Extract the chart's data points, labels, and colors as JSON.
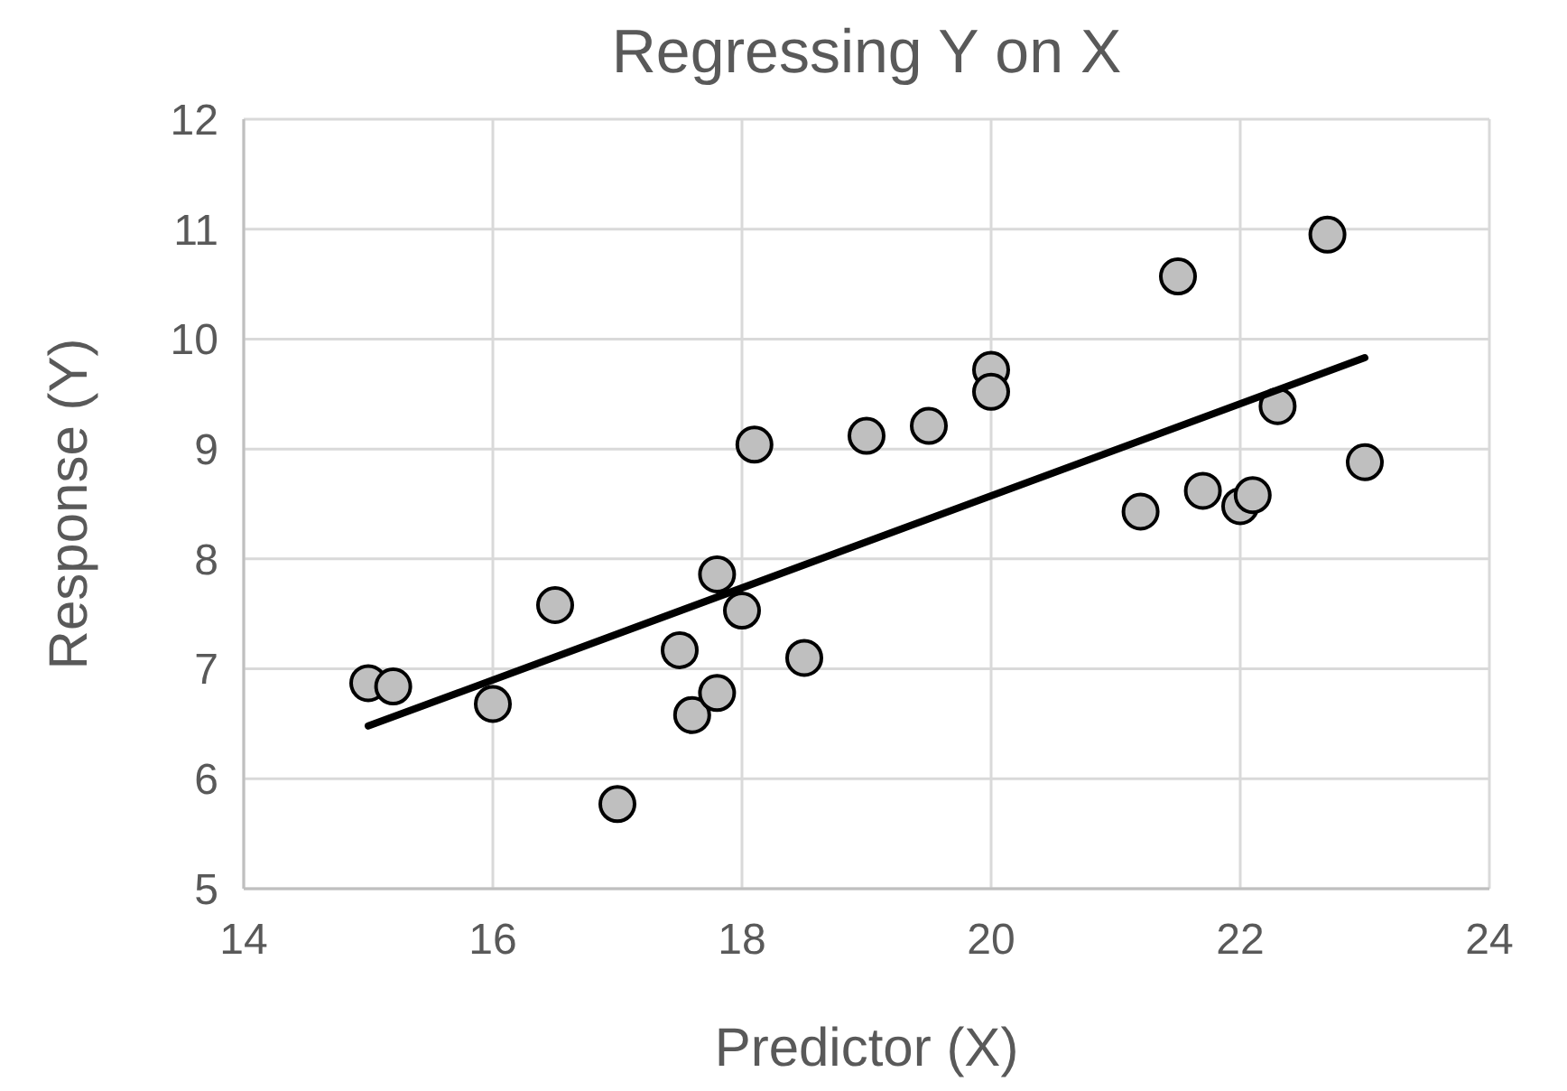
{
  "chart_data": {
    "type": "scatter",
    "title": "Regressing Y on X",
    "xlabel": "Predictor (X)",
    "ylabel": "Response (Y)",
    "xlim": [
      14,
      24
    ],
    "xticks": [
      14,
      16,
      18,
      20,
      22,
      24
    ],
    "ylim": [
      5,
      12
    ],
    "yticks": [
      5,
      6,
      7,
      8,
      9,
      10,
      11,
      12
    ],
    "grid": true,
    "marker": "circle",
    "series": [
      {
        "color": "#bfbfbf",
        "x": [
          15.0,
          15.2,
          16.0,
          16.5,
          17.0,
          17.5,
          17.6,
          17.8,
          17.8,
          18.0,
          18.1,
          18.5,
          19.0,
          19.5,
          20.0,
          20.0,
          21.2,
          21.5,
          21.7,
          22.0,
          22.1,
          22.3,
          22.7,
          23.0
        ],
        "values": [
          6.87,
          6.84,
          6.68,
          7.58,
          5.77,
          7.17,
          6.58,
          6.78,
          7.86,
          7.53,
          9.04,
          7.1,
          9.12,
          9.21,
          9.72,
          9.52,
          8.43,
          10.57,
          8.62,
          8.48,
          8.58,
          9.39,
          10.95,
          8.88
        ]
      },
      {
        "type": "line",
        "color": "#000000",
        "marker": "none",
        "line_style": "solid",
        "x": [
          15,
          23
        ],
        "values": [
          6.48,
          9.83
        ]
      }
    ]
  }
}
